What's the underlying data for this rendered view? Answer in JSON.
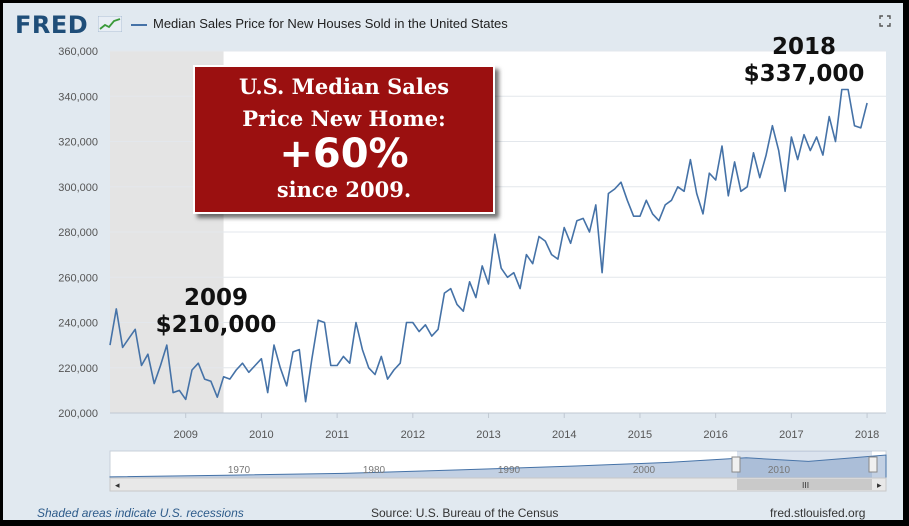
{
  "header": {
    "logo": "FRED",
    "title": "Median Sales Price for New Houses Sold in the United States"
  },
  "callout": {
    "line1": "U.S. Median Sales",
    "line2": "Price New Home:",
    "big": "+60%",
    "line3": "since 2009."
  },
  "annotations": {
    "a2009_year": "2009",
    "a2009_value": "$210,000",
    "a2018_year": "2018",
    "a2018_value": "$337,000"
  },
  "navigator": {
    "years": [
      "1970",
      "1980",
      "1990",
      "2000",
      "2010"
    ]
  },
  "footer": {
    "recession_note": "Shaded areas indicate U.S. recessions",
    "source": "Source: U.S. Bureau of the Census",
    "site": "fred.stlouisfed.org"
  },
  "colors": {
    "line": "#4572a7",
    "recession": "#e4e4e4",
    "callout": "#9b1010"
  },
  "chart_data": {
    "type": "line",
    "title": "Median Sales Price for New Houses Sold in the United States",
    "xlabel": "",
    "ylabel": "",
    "ylim": [
      200000,
      360000
    ],
    "yticks": [
      "200,000",
      "220,000",
      "240,000",
      "260,000",
      "280,000",
      "300,000",
      "320,000",
      "340,000",
      "360,000"
    ],
    "xticks": [
      "2009",
      "2010",
      "2011",
      "2012",
      "2013",
      "2014",
      "2015",
      "2016",
      "2017",
      "2018"
    ],
    "grid": true,
    "recession": {
      "start": "2008-01",
      "end": "2009-06"
    },
    "series": [
      {
        "start": "2008-01",
        "frequency": "monthly",
        "values": [
          230000,
          246000,
          229000,
          233000,
          237000,
          221000,
          226000,
          213000,
          221000,
          230000,
          209000,
          210000,
          206000,
          219000,
          222000,
          215000,
          214000,
          207000,
          216000,
          215000,
          219000,
          222000,
          218000,
          221000,
          224000,
          209000,
          230000,
          220000,
          212000,
          227000,
          228000,
          205000,
          224000,
          241000,
          240000,
          221000,
          221000,
          225000,
          222000,
          240000,
          228000,
          220000,
          217000,
          225000,
          215000,
          219000,
          222000,
          240000,
          240000,
          236000,
          239000,
          234000,
          237000,
          253000,
          255000,
          248000,
          245000,
          258000,
          251000,
          265000,
          257000,
          279000,
          264000,
          260000,
          262000,
          255000,
          270000,
          266000,
          278000,
          276000,
          270000,
          268000,
          282000,
          275000,
          285000,
          286000,
          280000,
          292000,
          262000,
          297000,
          299000,
          302000,
          294000,
          287000,
          287000,
          294000,
          288000,
          285000,
          292000,
          294000,
          300000,
          298000,
          312000,
          297000,
          288000,
          306000,
          303000,
          318000,
          296000,
          311000,
          298000,
          300000,
          315000,
          304000,
          314000,
          327000,
          316000,
          298000,
          322000,
          312000,
          323000,
          316000,
          322000,
          314000,
          331000,
          320000,
          343000,
          343000,
          327000,
          326000,
          337000
        ]
      }
    ]
  }
}
